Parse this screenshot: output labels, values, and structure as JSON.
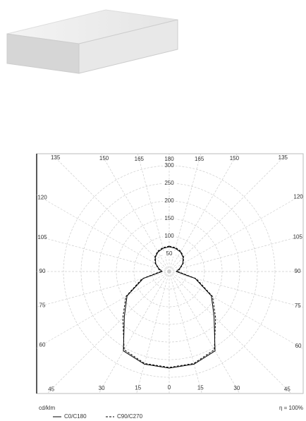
{
  "chart_data": {
    "type": "polar",
    "unit": "cd/klm",
    "efficiency": "η = 100%",
    "x": [
      -180,
      -165,
      -150,
      -135,
      -120,
      -105,
      -90,
      -75,
      -60,
      -45,
      -30,
      -15,
      0,
      15,
      30,
      45,
      60,
      75,
      90,
      105,
      120,
      135,
      150,
      165,
      180
    ],
    "series": [
      {
        "name": "C0/C180",
        "color": "#000000",
        "line_style": "solid",
        "values": [
          70,
          68,
          64,
          56,
          44,
          30,
          20,
          76,
          138,
          180,
          260,
          272,
          274,
          272,
          260,
          180,
          138,
          76,
          20,
          30,
          44,
          56,
          64,
          68,
          70
        ]
      },
      {
        "name": "C90/C270",
        "color": "#000000",
        "line_style": "dashed",
        "values": [
          72,
          70,
          66,
          58,
          46,
          32,
          24,
          80,
          142,
          186,
          256,
          270,
          272,
          270,
          256,
          186,
          142,
          80,
          24,
          32,
          46,
          58,
          66,
          70,
          72
        ]
      }
    ],
    "rlim": [
      0,
      500
    ],
    "rticks": [
      50,
      100,
      150,
      200,
      250,
      300
    ],
    "angle_ticks": [
      {
        "value": -165,
        "label": "165"
      },
      {
        "value": -150,
        "label": "150"
      },
      {
        "value": -135,
        "label": "135"
      },
      {
        "value": -120,
        "label": "120"
      },
      {
        "value": -105,
        "label": "105"
      },
      {
        "value": -90,
        "label": "90"
      },
      {
        "value": -75,
        "label": "75"
      },
      {
        "value": -60,
        "label": "60"
      },
      {
        "value": -45,
        "label": "45"
      },
      {
        "value": -30,
        "label": "30"
      },
      {
        "value": -15,
        "label": "15"
      },
      0,
      15,
      30,
      45,
      60,
      75,
      90,
      105,
      120,
      135,
      150,
      165,
      180
    ],
    "grid": true
  }
}
